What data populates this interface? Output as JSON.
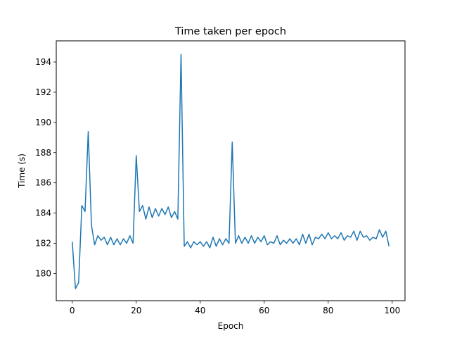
{
  "chart_data": {
    "type": "line",
    "title": "Time taken per epoch",
    "xlabel": "Epoch",
    "ylabel": "Time (s)",
    "xlim": [
      -5,
      104
    ],
    "ylim": [
      178.2,
      195.4
    ],
    "xticks": [
      0,
      20,
      40,
      60,
      80,
      100
    ],
    "yticks": [
      180,
      182,
      184,
      186,
      188,
      190,
      192,
      194
    ],
    "grid": false,
    "legend": "none",
    "colors": {
      "line": "#1f77b4"
    },
    "series": [
      {
        "x": [
          0,
          1,
          2,
          3,
          4,
          5,
          6,
          7,
          8,
          9,
          10,
          11,
          12,
          13,
          14,
          15,
          16,
          17,
          18,
          19,
          20,
          21,
          22,
          23,
          24,
          25,
          26,
          27,
          28,
          29,
          30,
          31,
          32,
          33,
          34,
          35,
          36,
          37,
          38,
          39,
          40,
          41,
          42,
          43,
          44,
          45,
          46,
          47,
          48,
          49,
          50,
          51,
          52,
          53,
          54,
          55,
          56,
          57,
          58,
          59,
          60,
          61,
          62,
          63,
          64,
          65,
          66,
          67,
          68,
          69,
          70,
          71,
          72,
          73,
          74,
          75,
          76,
          77,
          78,
          79,
          80,
          81,
          82,
          83,
          84,
          85,
          86,
          87,
          88,
          89,
          90,
          91,
          92,
          93,
          94,
          95,
          96,
          97,
          98,
          99
        ],
        "values": [
          182.1,
          179.0,
          179.4,
          184.5,
          184.1,
          189.4,
          183.2,
          181.9,
          182.5,
          182.2,
          182.4,
          181.9,
          182.4,
          181.9,
          182.3,
          181.9,
          182.3,
          182.0,
          182.5,
          182.0,
          187.8,
          184.1,
          184.5,
          183.6,
          184.4,
          183.7,
          184.3,
          183.8,
          184.3,
          183.9,
          184.4,
          183.7,
          184.1,
          183.6,
          194.5,
          181.8,
          182.1,
          181.7,
          182.1,
          181.9,
          182.1,
          181.8,
          182.1,
          181.7,
          182.4,
          181.8,
          182.3,
          181.9,
          182.3,
          182.0,
          188.7,
          182.0,
          182.5,
          182.0,
          182.4,
          182.0,
          182.5,
          182.0,
          182.4,
          182.1,
          182.5,
          181.9,
          182.1,
          182.0,
          182.5,
          181.9,
          182.2,
          182.0,
          182.3,
          182.0,
          182.3,
          181.9,
          182.6,
          182.0,
          182.6,
          181.9,
          182.4,
          182.3,
          182.6,
          182.3,
          182.7,
          182.3,
          182.5,
          182.3,
          182.7,
          182.2,
          182.5,
          182.4,
          182.8,
          182.2,
          182.8,
          182.4,
          182.5,
          182.2,
          182.4,
          182.3,
          182.9,
          182.4,
          182.8,
          181.8
        ]
      }
    ]
  }
}
